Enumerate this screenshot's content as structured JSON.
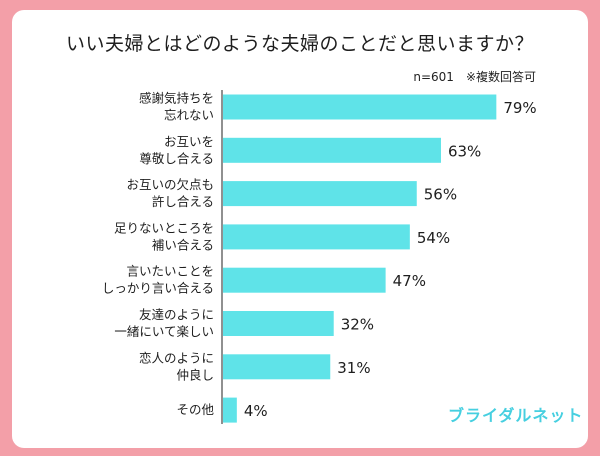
{
  "chart_data": {
    "type": "bar",
    "orientation": "horizontal",
    "title": "いい夫婦とはどのような夫婦のことだと思いますか？",
    "note": "n=601　※複数回答可",
    "categories": [
      [
        "感謝気持ちを",
        "忘れない"
      ],
      [
        "お互いを",
        "尊敬し合える"
      ],
      [
        "お互いの欠点も",
        "許し合える"
      ],
      [
        "足りないところを",
        "補い合える"
      ],
      [
        "言いたいことを",
        "しっかり言い合える"
      ],
      [
        "友達のように",
        "一緒にいて楽しい"
      ],
      [
        "恋人のように",
        "仲良し"
      ],
      [
        "その他"
      ]
    ],
    "values": [
      79,
      63,
      56,
      54,
      47,
      32,
      31,
      4
    ],
    "value_labels": [
      "79%",
      "63%",
      "56%",
      "54%",
      "47%",
      "32%",
      "31%",
      "4%"
    ],
    "xlim": [
      0,
      100
    ],
    "grid": false,
    "bar_color": "#5fe3e8"
  },
  "brand": "ブライダルネット",
  "colors": {
    "frame": "#f39fa8",
    "card": "#ffffff",
    "bar": "#5fe3e8",
    "brand": "#46cfe0",
    "axis": "#222222",
    "text": "#1e1e1e"
  }
}
